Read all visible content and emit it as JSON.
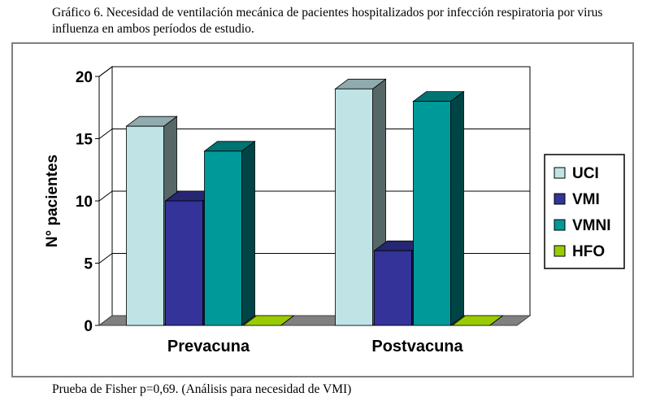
{
  "caption": "Gráfico 6. Necesidad de ventilación mecánica de pacientes hospitalizados por infección respiratoria por virus influenza en ambos períodos de estudio.",
  "footnote": "Prueba de Fisher p=0,69. (Análisis para necesidad de VMI)",
  "chart_data": {
    "type": "bar",
    "categories": [
      "Prevacuna",
      "Postvacuna"
    ],
    "series": [
      {
        "name": "UCI",
        "values": [
          16,
          19
        ],
        "color": "#c0e4e6"
      },
      {
        "name": "VMI",
        "values": [
          10,
          6
        ],
        "color": "#333399"
      },
      {
        "name": "VMNI",
        "values": [
          14,
          18
        ],
        "color": "#009999"
      },
      {
        "name": "HFO",
        "values": [
          0,
          0
        ],
        "color": "#99cc00"
      }
    ],
    "title": "",
    "xlabel": "",
    "ylabel": "N° pacientes",
    "ylim": [
      0,
      20
    ],
    "yticks": [
      "0",
      "5",
      "10",
      "15",
      "20"
    ],
    "grid": true,
    "legend": "right",
    "style": "3d-clustered-bar"
  }
}
